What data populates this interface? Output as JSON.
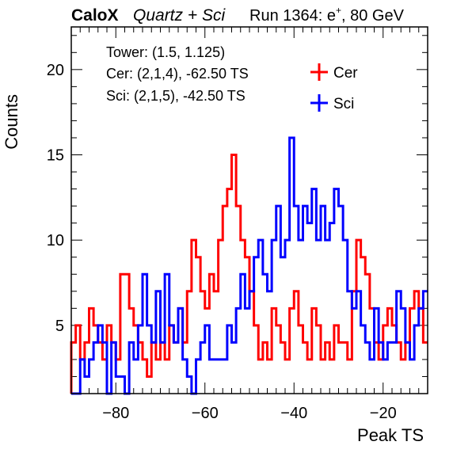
{
  "header": {
    "brand": "CaloX",
    "subtitle": "Quartz + Sci",
    "run_text": "Run 1364: e",
    "run_sup": "+",
    "run_energy": ", 80 GeV"
  },
  "info": {
    "tower": "Tower: (1.5, 1.125)",
    "cer": "Cer: (2,1,4), -62.50 TS",
    "sci": "Sci: (2,1,5), -42.50 TS"
  },
  "chart_data": {
    "type": "histogram-step",
    "title": "",
    "xlabel": "Peak TS",
    "ylabel": "Counts",
    "xlim": [
      -90,
      -10
    ],
    "ylim": [
      1,
      22.5
    ],
    "bin_start": -90,
    "bin_width": 1,
    "xticks": [
      -80,
      -60,
      -40,
      -20
    ],
    "yticks": [
      5,
      10,
      15,
      20
    ],
    "legend_position": "top-right",
    "series": [
      {
        "name": "Cer",
        "color": "#ff0000",
        "values": [
          4,
          5,
          3,
          4,
          6,
          5,
          4,
          3,
          5,
          4,
          3,
          8,
          8,
          6,
          5,
          4,
          3,
          2,
          4,
          3,
          4,
          3,
          5,
          4,
          6,
          4,
          7,
          10,
          9,
          7,
          6,
          8,
          7,
          10,
          12,
          13,
          15,
          12,
          10,
          9,
          7,
          5,
          3,
          4,
          3,
          6,
          5,
          4,
          3,
          6,
          7,
          5,
          4,
          3,
          6,
          5,
          3,
          4,
          3,
          5,
          4,
          4,
          3,
          7,
          10,
          9,
          8,
          6,
          4,
          3,
          5,
          6,
          5,
          4,
          3,
          4,
          6,
          7,
          6,
          4
        ]
      },
      {
        "name": "Sci",
        "color": "#0000ff",
        "values": [
          1,
          1,
          3,
          2,
          3,
          4,
          5,
          4,
          1,
          4,
          2,
          2,
          1,
          4,
          3,
          5,
          8,
          5,
          4,
          7,
          4,
          8,
          5,
          4,
          6,
          3,
          2,
          1,
          3,
          4,
          5,
          3,
          3,
          3,
          3,
          5,
          4,
          6,
          8,
          6,
          7,
          9,
          10,
          8,
          7,
          10,
          12,
          9,
          10,
          16,
          12,
          10,
          12,
          11,
          13,
          10,
          12,
          10,
          11,
          13,
          12,
          10,
          7,
          6,
          7,
          5,
          4,
          3,
          6,
          4,
          3,
          4,
          4,
          7,
          6,
          4,
          3,
          5,
          6,
          7
        ]
      }
    ]
  }
}
